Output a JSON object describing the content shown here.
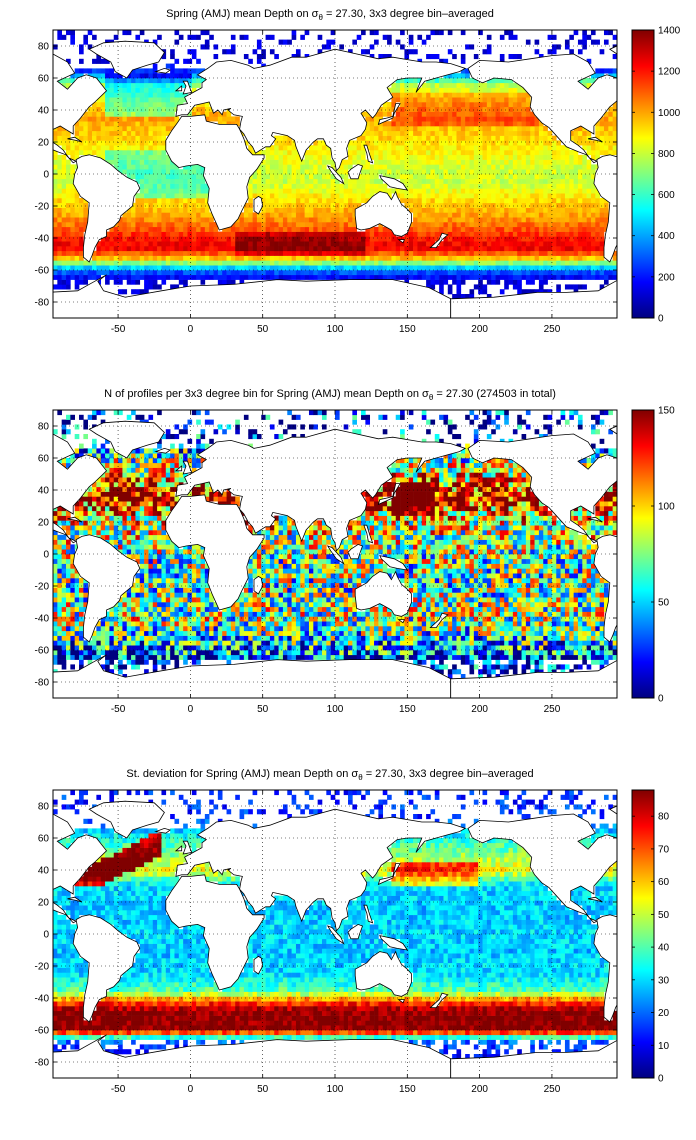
{
  "figure": {
    "panels": [
      {
        "title_prefix": "Spring (AMJ) mean Depth on σ",
        "title_sub": "θ",
        "title_suffix": " = 27.30, 3x3 degree bin–averaged",
        "colorbar": {
          "ticks": [
            "0",
            "200",
            "400",
            "600",
            "800",
            "1000",
            "1200",
            "1400"
          ],
          "min": 0,
          "max": 1400
        }
      },
      {
        "title_prefix": "N of profiles per 3x3 degree bin for Spring (AMJ) mean Depth on σ",
        "title_sub": "θ",
        "title_suffix": " = 27.30 (274503 in total)",
        "colorbar": {
          "ticks": [
            "0",
            "50",
            "100",
            "150"
          ],
          "min": 0,
          "max": 150
        }
      },
      {
        "title_prefix": "St. deviation for Spring (AMJ) mean Depth on σ",
        "title_sub": "θ",
        "title_suffix": " = 27.30, 3x3 degree bin–averaged",
        "colorbar": {
          "ticks": [
            "0",
            "10",
            "20",
            "30",
            "40",
            "50",
            "60",
            "70",
            "80"
          ],
          "min": 0,
          "max": 88
        }
      }
    ]
  },
  "chart_data": [
    {
      "type": "heatmap",
      "title": "Spring (AMJ) mean Depth on σθ = 27.30, 3x3 degree bin–averaged",
      "x_ticks": [
        -50,
        0,
        50,
        100,
        150,
        200,
        250
      ],
      "y_ticks": [
        -80,
        -60,
        -40,
        -20,
        0,
        20,
        40,
        60,
        80
      ],
      "xlim": [
        -95,
        295
      ],
      "ylim": [
        -90,
        90
      ],
      "grid": true,
      "colormap": "jet",
      "bin_size_deg": 3,
      "value_range": [
        0,
        1400
      ],
      "colorbar_ticks": [
        0,
        200,
        400,
        600,
        800,
        1000,
        1200,
        1400
      ],
      "zonal_profile": {
        "lat": [
          -78,
          -66,
          -60,
          -57,
          -52,
          -46,
          -40,
          -34,
          -26,
          -16,
          -6,
          4,
          14,
          26,
          36,
          46,
          56,
          64,
          72
        ],
        "value": [
          100,
          130,
          330,
          600,
          1000,
          1250,
          1200,
          1100,
          1000,
          920,
          800,
          820,
          880,
          950,
          1000,
          900,
          780,
          250,
          120
        ]
      }
    },
    {
      "type": "heatmap",
      "title": "N of profiles per 3x3 degree bin for Spring (AMJ) mean Depth on σθ = 27.30 (274503 in total)",
      "x_ticks": [
        -50,
        0,
        50,
        100,
        150,
        200,
        250
      ],
      "y_ticks": [
        -80,
        -60,
        -40,
        -20,
        0,
        20,
        40,
        60,
        80
      ],
      "xlim": [
        -95,
        295
      ],
      "ylim": [
        -90,
        90
      ],
      "grid": true,
      "colormap": "jet",
      "bin_size_deg": 3,
      "value_range": [
        0,
        150
      ],
      "colorbar_ticks": [
        0,
        50,
        100,
        150
      ],
      "total_profiles": 274503,
      "zonal_profile": {
        "lat": [
          -78,
          -66,
          -60,
          -52,
          -40,
          -20,
          0,
          20,
          36,
          46,
          60,
          72
        ],
        "value": [
          10,
          20,
          40,
          60,
          80,
          70,
          75,
          90,
          140,
          110,
          70,
          20
        ]
      }
    },
    {
      "type": "heatmap",
      "title": "St. deviation for Spring (AMJ) mean Depth on σθ = 27.30, 3x3 degree bin–averaged",
      "x_ticks": [
        -50,
        0,
        50,
        100,
        150,
        200,
        250
      ],
      "y_ticks": [
        -80,
        -60,
        -40,
        -20,
        0,
        20,
        40,
        60,
        80
      ],
      "xlim": [
        -95,
        295
      ],
      "ylim": [
        -90,
        90
      ],
      "grid": true,
      "colormap": "jet",
      "bin_size_deg": 3,
      "value_range": [
        0,
        88
      ],
      "colorbar_ticks": [
        0,
        10,
        20,
        30,
        40,
        50,
        60,
        70,
        80
      ],
      "zonal_profile": {
        "lat": [
          -78,
          -66,
          -60,
          -55,
          -48,
          -42,
          -35,
          -25,
          -10,
          0,
          15,
          30,
          40,
          50,
          60,
          72
        ],
        "value": [
          10,
          20,
          88,
          88,
          88,
          70,
          40,
          30,
          28,
          30,
          28,
          30,
          55,
          45,
          35,
          15
        ]
      }
    }
  ]
}
